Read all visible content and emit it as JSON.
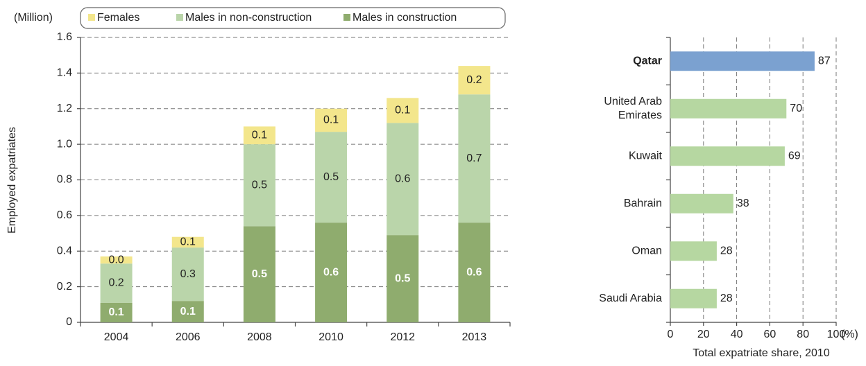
{
  "chart_data": [
    {
      "type": "stacked_bar",
      "unit": "(Million)",
      "ylabel": "Employed expatriates",
      "categories": [
        "2004",
        "2006",
        "2008",
        "2010",
        "2012",
        "2013"
      ],
      "series": [
        {
          "name": "Males in construction",
          "color": "#8fac6e",
          "values": [
            0.11,
            0.12,
            0.54,
            0.56,
            0.49,
            0.56
          ],
          "value_labels": [
            "0.1",
            "0.1",
            "0.5",
            "0.6",
            "0.5",
            "0.6"
          ]
        },
        {
          "name": "Males in non-construction",
          "color": "#bad5aa",
          "values": [
            0.22,
            0.3,
            0.46,
            0.51,
            0.63,
            0.72
          ],
          "value_labels": [
            "0.2",
            "0.3",
            "0.5",
            "0.5",
            "0.6",
            "0.7"
          ]
        },
        {
          "name": "Females",
          "color": "#f3e68c",
          "values": [
            0.04,
            0.06,
            0.1,
            0.13,
            0.14,
            0.16
          ],
          "value_labels": [
            "0.0",
            "0.1",
            "0.1",
            "0.1",
            "0.1",
            "0.2"
          ]
        }
      ],
      "ylim": [
        0,
        1.6
      ],
      "yticks": [
        0,
        0.2,
        0.4,
        0.6,
        0.8,
        {
          "value": 1,
          "label": "1.0"
        },
        1.2,
        1.4,
        1.6
      ],
      "grid": true
    },
    {
      "type": "hbar",
      "categories": [
        "Qatar",
        "United Arab\nEmirates",
        "Kuwait",
        "Bahrain",
        "Oman",
        "Saudi Arabia"
      ],
      "values": [
        87,
        70,
        69,
        38,
        28,
        28
      ],
      "colors": [
        "#7ba1d0",
        "#b6d7a1",
        "#b6d7a1",
        "#b6d7a1",
        "#b6d7a1",
        "#b6d7a1"
      ],
      "highlight": "Qatar",
      "xlim": [
        0,
        100
      ],
      "xticks": [
        0,
        20,
        40,
        60,
        80,
        100
      ],
      "x_unit": "(%)",
      "xlabel": "Total expatriate share, 2010",
      "grid": true
    }
  ]
}
